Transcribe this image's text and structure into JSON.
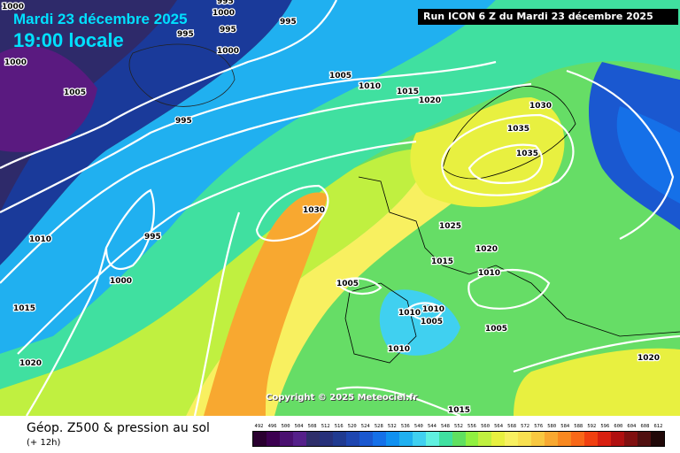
{
  "map": {
    "date_label": "Mardi 23 décembre 2025",
    "time_label": "19:00 locale",
    "run_label": "Run ICON 6 Z du Mardi 23 décembre 2025",
    "copyright": "Copyright © 2025 Meteociel.fr",
    "isobar_labels": [
      "1000",
      "995",
      "995",
      "995",
      "1000",
      "1000",
      "995",
      "1005",
      "1000",
      "1005",
      "1010",
      "1015",
      "1020",
      "1030",
      "1035",
      "1035",
      "1030",
      "1025",
      "1020",
      "1015",
      "1010",
      "1005",
      "1010",
      "1005",
      "1005",
      "1010",
      "1015",
      "1020",
      "1010",
      "995",
      "1000",
      "1015",
      "1020",
      "995",
      "1010"
    ]
  },
  "footer": {
    "title": "Géop. Z500 & pression au sol",
    "subtitle": "(+ 12h)"
  },
  "legend": {
    "ticks": [
      "492",
      "496",
      "500",
      "504",
      "508",
      "512",
      "516",
      "520",
      "524",
      "528",
      "532",
      "536",
      "540",
      "544",
      "548",
      "552",
      "556",
      "560",
      "564",
      "568",
      "572",
      "576",
      "580",
      "584",
      "588",
      "592",
      "596",
      "600",
      "604",
      "608",
      "612"
    ],
    "colors": [
      "#2a0030",
      "#3c0050",
      "#4a1070",
      "#55208a",
      "#2e2e6a",
      "#26307a",
      "#203a90",
      "#1e46b0",
      "#1a58d0",
      "#1570e8",
      "#1090f0",
      "#20b0f0",
      "#40d0f0",
      "#60f0e0",
      "#40e0a0",
      "#60e060",
      "#90f040",
      "#c0f040",
      "#e8f040",
      "#f8f060",
      "#f8e050",
      "#f8c840",
      "#f8a830",
      "#f88820",
      "#f86818",
      "#f04010",
      "#d82010",
      "#b01010",
      "#801010",
      "#501010",
      "#200808"
    ]
  }
}
